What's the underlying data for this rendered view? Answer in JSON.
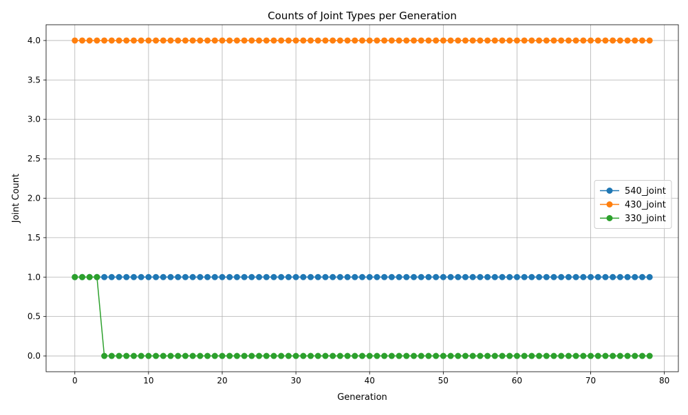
{
  "chart_data": {
    "type": "line",
    "title": "Counts of Joint Types per Generation",
    "xlabel": "Generation",
    "ylabel": "Joint Count",
    "xlim": [
      -3.9,
      81.9
    ],
    "ylim": [
      -0.2,
      4.2
    ],
    "xticks": [
      0,
      10,
      20,
      30,
      40,
      50,
      60,
      70,
      80
    ],
    "xtick_labels": [
      "0",
      "10",
      "20",
      "30",
      "40",
      "50",
      "60",
      "70",
      "80"
    ],
    "yticks": [
      0.0,
      0.5,
      1.0,
      1.5,
      2.0,
      2.5,
      3.0,
      3.5,
      4.0
    ],
    "ytick_labels": [
      "0.0",
      "0.5",
      "1.0",
      "1.5",
      "2.0",
      "2.5",
      "3.0",
      "3.5",
      "4.0"
    ],
    "grid": true,
    "legend_position": "center-right",
    "x_start": 0,
    "x_end": 78,
    "series": [
      {
        "name": "540_joint",
        "color": "#1f77b4",
        "values": [
          1,
          1,
          1,
          1,
          1,
          1,
          1,
          1,
          1,
          1,
          1,
          1,
          1,
          1,
          1,
          1,
          1,
          1,
          1,
          1,
          1,
          1,
          1,
          1,
          1,
          1,
          1,
          1,
          1,
          1,
          1,
          1,
          1,
          1,
          1,
          1,
          1,
          1,
          1,
          1,
          1,
          1,
          1,
          1,
          1,
          1,
          1,
          1,
          1,
          1,
          1,
          1,
          1,
          1,
          1,
          1,
          1,
          1,
          1,
          1,
          1,
          1,
          1,
          1,
          1,
          1,
          1,
          1,
          1,
          1,
          1,
          1,
          1,
          1,
          1,
          1,
          1,
          1,
          1
        ]
      },
      {
        "name": "430_joint",
        "color": "#ff7f0e",
        "values": [
          4,
          4,
          4,
          4,
          4,
          4,
          4,
          4,
          4,
          4,
          4,
          4,
          4,
          4,
          4,
          4,
          4,
          4,
          4,
          4,
          4,
          4,
          4,
          4,
          4,
          4,
          4,
          4,
          4,
          4,
          4,
          4,
          4,
          4,
          4,
          4,
          4,
          4,
          4,
          4,
          4,
          4,
          4,
          4,
          4,
          4,
          4,
          4,
          4,
          4,
          4,
          4,
          4,
          4,
          4,
          4,
          4,
          4,
          4,
          4,
          4,
          4,
          4,
          4,
          4,
          4,
          4,
          4,
          4,
          4,
          4,
          4,
          4,
          4,
          4,
          4,
          4,
          4,
          4
        ]
      },
      {
        "name": "330_joint",
        "color": "#2ca02c",
        "values": [
          1,
          1,
          1,
          1,
          0,
          0,
          0,
          0,
          0,
          0,
          0,
          0,
          0,
          0,
          0,
          0,
          0,
          0,
          0,
          0,
          0,
          0,
          0,
          0,
          0,
          0,
          0,
          0,
          0,
          0,
          0,
          0,
          0,
          0,
          0,
          0,
          0,
          0,
          0,
          0,
          0,
          0,
          0,
          0,
          0,
          0,
          0,
          0,
          0,
          0,
          0,
          0,
          0,
          0,
          0,
          0,
          0,
          0,
          0,
          0,
          0,
          0,
          0,
          0,
          0,
          0,
          0,
          0,
          0,
          0,
          0,
          0,
          0,
          0,
          0,
          0,
          0,
          0,
          0
        ]
      }
    ]
  }
}
